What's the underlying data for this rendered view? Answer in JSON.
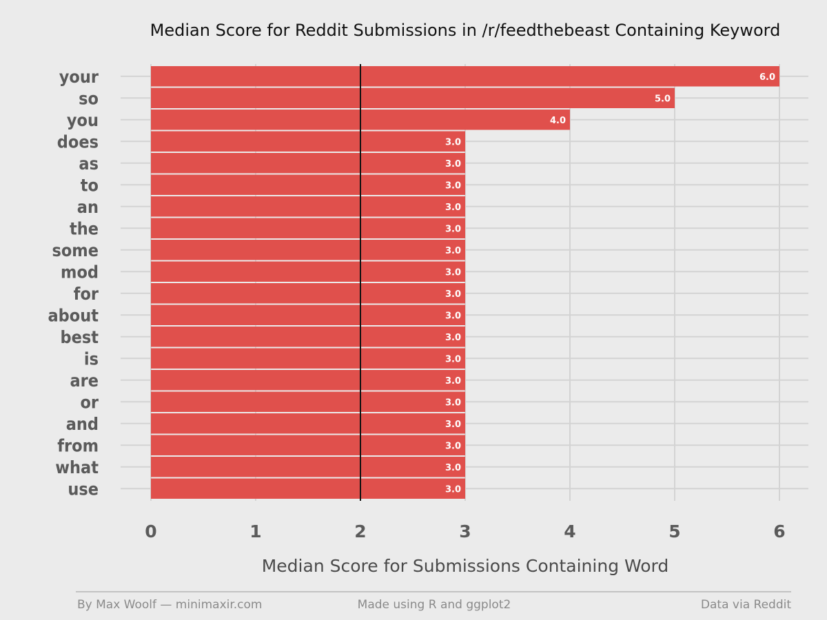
{
  "chart_data": {
    "type": "bar",
    "orientation": "horizontal",
    "title": "Median Score for Reddit Submissions in /r/feedthebeast Containing Keyword",
    "xlabel": "Median Score for Submissions Containing Word",
    "ylabel": "",
    "categories": [
      "your",
      "so",
      "you",
      "does",
      "as",
      "to",
      "an",
      "the",
      "some",
      "mod",
      "for",
      "about",
      "best",
      "is",
      "are",
      "or",
      "and",
      "from",
      "what",
      "use"
    ],
    "values": [
      6.0,
      5.0,
      4.0,
      3.0,
      3.0,
      3.0,
      3.0,
      3.0,
      3.0,
      3.0,
      3.0,
      3.0,
      3.0,
      3.0,
      3.0,
      3.0,
      3.0,
      3.0,
      3.0,
      3.0
    ],
    "value_labels": [
      "6.0",
      "5.0",
      "4.0",
      "3.0",
      "3.0",
      "3.0",
      "3.0",
      "3.0",
      "3.0",
      "3.0",
      "3.0",
      "3.0",
      "3.0",
      "3.0",
      "3.0",
      "3.0",
      "3.0",
      "3.0",
      "3.0",
      "3.0"
    ],
    "xlim": [
      0,
      6
    ],
    "xticks": [
      "0",
      "1",
      "2",
      "3",
      "4",
      "5",
      "6"
    ],
    "reference_line": 2,
    "grid": true,
    "bar_color": "#e0504c",
    "background_color": "#ebebeb"
  },
  "footer": {
    "left": "By Max Woolf — minimaxir.com",
    "center": "Made using R and ggplot2",
    "right": "Data via Reddit"
  }
}
